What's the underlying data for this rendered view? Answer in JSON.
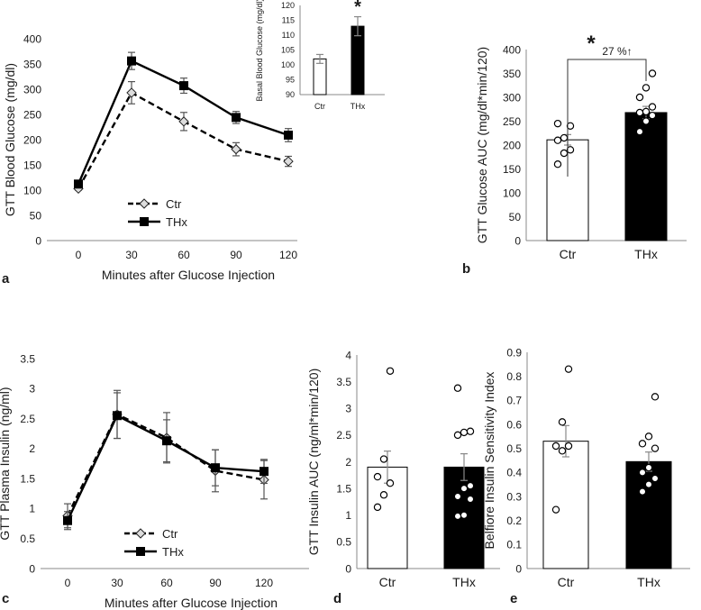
{
  "chart_data": [
    {
      "panel": "a",
      "type": "line",
      "xlabel": "Minutes after Glucose  Injection",
      "ylabel": "GTT Blood Glucose (mg/dl)",
      "x": [
        0,
        30,
        60,
        90,
        120
      ],
      "xlim": [
        0,
        120
      ],
      "ylim": [
        0,
        400
      ],
      "yticks": [
        0,
        50,
        100,
        150,
        200,
        250,
        300,
        350,
        400
      ],
      "legend_position": "bottom-left",
      "series": [
        {
          "name": "Ctr",
          "style": "dashed",
          "marker": "diamond",
          "color": "#000000",
          "values": [
            103,
            293,
            236,
            181,
            157
          ],
          "errors": [
            3,
            22,
            18,
            13,
            10
          ]
        },
        {
          "name": "THx",
          "style": "solid",
          "marker": "square",
          "color": "#000000",
          "values": [
            112,
            356,
            307,
            244,
            209
          ],
          "errors": [
            5,
            17,
            15,
            12,
            13
          ]
        }
      ]
    },
    {
      "panel": "a-inset",
      "type": "bar",
      "ylabel": "Basal Blood Glucose (mg/dl)",
      "categories": [
        "Ctr",
        "THx"
      ],
      "values": [
        102,
        113
      ],
      "errors": [
        1.5,
        3.2
      ],
      "fills": [
        "#ffffff",
        "#000000"
      ],
      "ylim": [
        90,
        120
      ],
      "yticks": [
        90,
        95,
        100,
        105,
        110,
        115,
        120
      ],
      "annotation": "*"
    },
    {
      "panel": "b",
      "type": "bar",
      "ylabel": "GTT Glucose AUC (mg/dl*min/120)",
      "categories": [
        "Ctr",
        "THx"
      ],
      "values": [
        211,
        268
      ],
      "errors": [
        11,
        13
      ],
      "fills": [
        "#ffffff",
        "#000000"
      ],
      "ylim": [
        0,
        400
      ],
      "yticks": [
        0,
        50,
        100,
        150,
        200,
        250,
        300,
        350,
        400
      ],
      "points": {
        "Ctr": [
          160,
          183,
          190,
          210,
          215,
          240,
          245
        ],
        "THx": [
          228,
          250,
          262,
          268,
          270,
          280,
          300,
          320,
          350
        ]
      },
      "annotation": {
        "star": "*",
        "text": "27 %↑"
      }
    },
    {
      "panel": "c",
      "type": "line",
      "xlabel": "Minutes after Glucose  Injection",
      "ylabel": "GTT Plasma Insulin  (ng/ml)",
      "x": [
        0,
        30,
        60,
        90,
        120
      ],
      "xlim": [
        0,
        120
      ],
      "ylim": [
        0,
        3.5
      ],
      "yticks": [
        0,
        0.5,
        1,
        1.5,
        2,
        2.5,
        3,
        3.5
      ],
      "legend_position": "bottom-center",
      "series": [
        {
          "name": "Ctr",
          "style": "dashed",
          "marker": "diamond",
          "color": "#000000",
          "values": [
            0.88,
            2.57,
            2.18,
            1.63,
            1.48
          ],
          "errors": [
            0.2,
            0.4,
            0.42,
            0.35,
            0.32
          ]
        },
        {
          "name": "THx",
          "style": "solid",
          "marker": "square",
          "color": "#000000",
          "values": [
            0.8,
            2.55,
            2.13,
            1.68,
            1.62
          ],
          "errors": [
            0.15,
            0.38,
            0.35,
            0.3,
            0.2
          ]
        }
      ]
    },
    {
      "panel": "d",
      "type": "bar",
      "ylabel": "GTT Insulin  AUC (ng/ml*min/120)",
      "categories": [
        "Ctr",
        "THx"
      ],
      "values": [
        1.9,
        1.9
      ],
      "errors": [
        0.3,
        0.25
      ],
      "fills": [
        "#ffffff",
        "#000000"
      ],
      "ylim": [
        0,
        4
      ],
      "yticks": [
        0,
        0.5,
        1,
        1.5,
        2,
        2.5,
        3,
        3.5,
        4
      ],
      "points": {
        "Ctr": [
          1.15,
          1.38,
          1.6,
          1.72,
          2.05,
          3.7
        ],
        "THx": [
          0.98,
          1.0,
          1.3,
          1.35,
          1.5,
          1.55,
          2.5,
          2.55,
          2.57,
          3.38
        ]
      }
    },
    {
      "panel": "e",
      "type": "bar",
      "ylabel": "Belfiore Insulin Sensitivity Index",
      "categories": [
        "Ctr",
        "THx"
      ],
      "values": [
        0.53,
        0.445
      ],
      "errors": [
        0.065,
        0.04
      ],
      "fills": [
        "#ffffff",
        "#000000"
      ],
      "ylim": [
        0,
        0.9
      ],
      "yticks": [
        0,
        0.1,
        0.2,
        0.3,
        0.4,
        0.5,
        0.6,
        0.7,
        0.8,
        0.9
      ],
      "points": {
        "Ctr": [
          0.245,
          0.49,
          0.51,
          0.51,
          0.61,
          0.83
        ],
        "THx": [
          0.32,
          0.35,
          0.375,
          0.4,
          0.42,
          0.5,
          0.52,
          0.55,
          0.715
        ]
      }
    }
  ]
}
